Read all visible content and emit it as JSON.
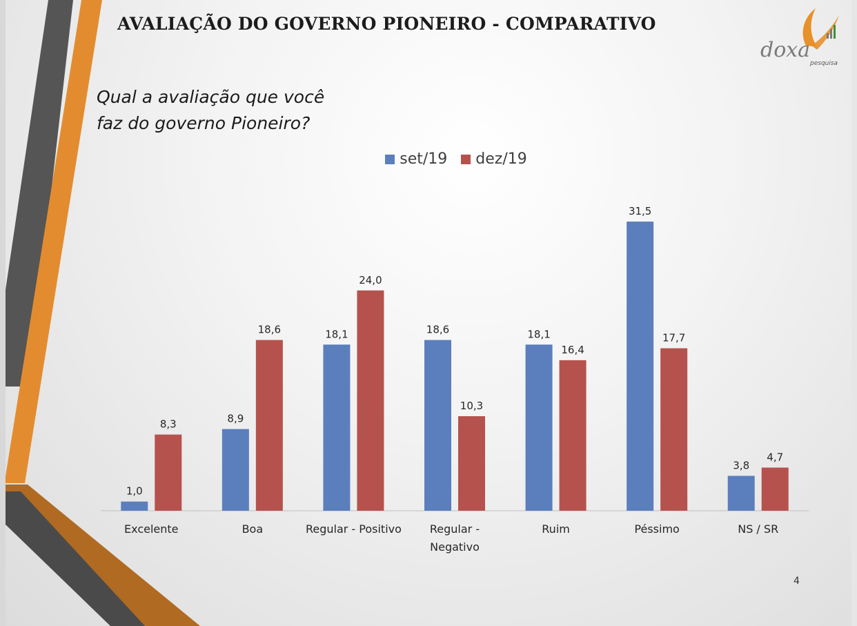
{
  "slide": {
    "title": "AVALIAÇÃO DO GOVERNO PIONEIRO - COMPARATIVO",
    "question_line1": "Qual a avaliação que você",
    "question_line2": "faz do governo Pioneiro?",
    "page_number": "4"
  },
  "logo": {
    "text": "doxa",
    "subtext": "pesquisa",
    "colors": {
      "orange": "#e8902a",
      "gray": "#7a7a7a",
      "green": "#3a8f3a"
    }
  },
  "colors": {
    "series1": "#5b7fbd",
    "series2": "#b6524d",
    "stripe_dark": "#555555",
    "stripe_orange": "#e38c2f",
    "stripe_bottom_orange": "#b06a22"
  },
  "chart_data": {
    "type": "bar",
    "title": "",
    "categories": [
      [
        "Excelente"
      ],
      [
        "Boa"
      ],
      [
        "Regular - Positivo"
      ],
      [
        "Regular -",
        "Negativo"
      ],
      [
        "Ruim"
      ],
      [
        "Péssimo"
      ],
      [
        "NS / SR"
      ]
    ],
    "series": [
      {
        "name": "set/19",
        "values": [
          1.0,
          8.9,
          18.1,
          18.6,
          18.1,
          31.5,
          3.8
        ],
        "labels": [
          "1,0",
          "8,9",
          "18,1",
          "18,6",
          "18,1",
          "31,5",
          "3,8"
        ]
      },
      {
        "name": "dez/19",
        "values": [
          8.3,
          18.6,
          24.0,
          10.3,
          16.4,
          17.7,
          4.7
        ],
        "labels": [
          "8,3",
          "18,6",
          "24,0",
          "10,3",
          "16,4",
          "17,7",
          "4,7"
        ]
      }
    ],
    "xlabel": "",
    "ylabel": "",
    "ylim": [
      0,
      35
    ],
    "legend": "top-center",
    "grid": false
  }
}
